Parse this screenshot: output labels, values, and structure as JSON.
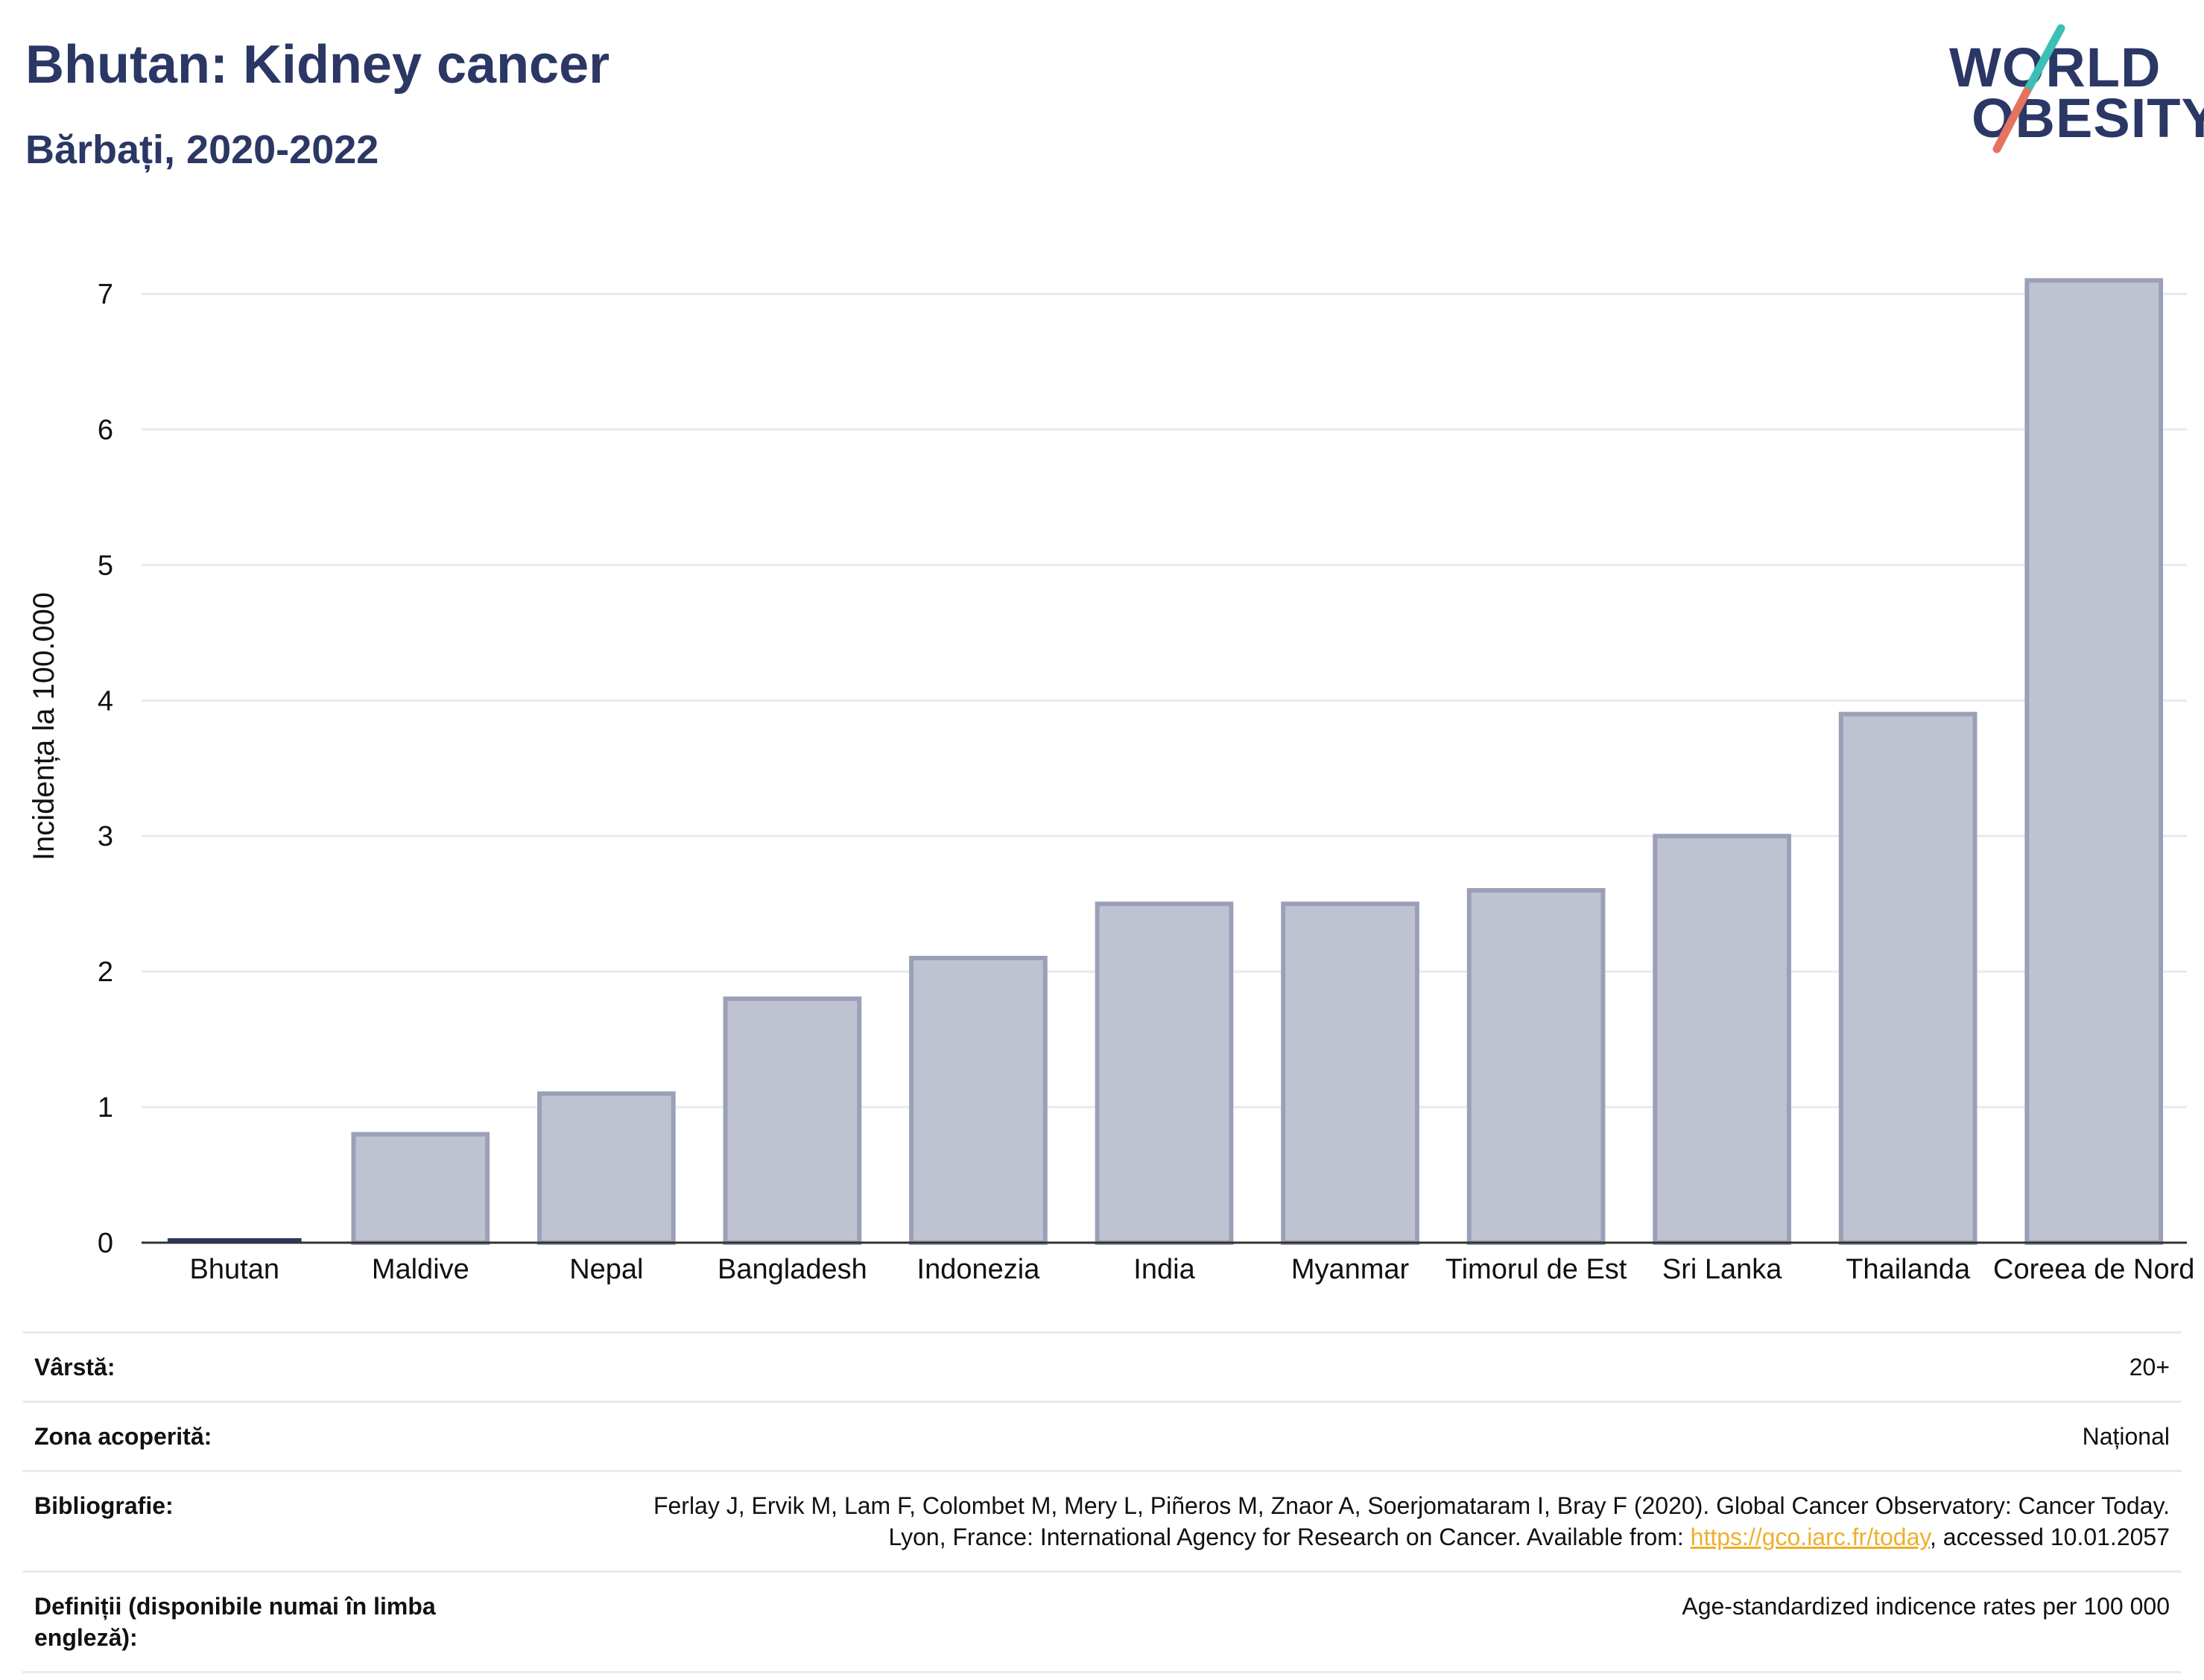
{
  "header": {
    "title": "Bhutan: Kidney cancer",
    "subtitle": "Bărbați, 2020-2022"
  },
  "logo": {
    "line1": "WORLD",
    "line2": "OBESITY",
    "colors": {
      "text": "#2b3764",
      "slash_top": "#3bbfb6",
      "slash_bottom": "#e5735f"
    }
  },
  "chart_data": {
    "type": "bar",
    "categories": [
      "Bhutan",
      "Maldive",
      "Nepal",
      "Bangladesh",
      "Indonezia",
      "India",
      "Myanmar",
      "Timorul de Est",
      "Sri Lanka",
      "Thailanda",
      "Coreea de Nord"
    ],
    "values": [
      0.02,
      0.8,
      1.1,
      1.8,
      2.1,
      2.5,
      2.5,
      2.6,
      3.0,
      3.9,
      7.1
    ],
    "highlight": "Bhutan",
    "ylabel": "Incidența la 100.000",
    "xlabel": "",
    "ylim": [
      0,
      7.3
    ],
    "yticks": [
      0,
      1,
      2,
      3,
      4,
      5,
      6,
      7
    ],
    "grid": true,
    "colors": {
      "bar_fill": "#bfc3d1",
      "bar_stroke": "#9aa0b8",
      "highlight": "#2b3764",
      "grid": "#e8eaf0",
      "axis": "#333333"
    }
  },
  "meta": {
    "rows": [
      {
        "label": "Vârstă:",
        "value": "20+"
      },
      {
        "label": "Zona acoperită:",
        "value": "Național"
      },
      {
        "label": "Bibliografie:",
        "value_before": "Ferlay J, Ervik M, Lam F, Colombet M, Mery L, Piñeros M, Znaor A, Soerjomataram I, Bray F (2020). Global Cancer Observatory: Cancer Today. Lyon, France: International Agency for Research on Cancer. Available from: ",
        "link": "https://gco.iarc.fr/today",
        "value_after": ", accessed 10.01.2057"
      },
      {
        "label": "Definiții (disponibile numai în limba engleză):",
        "value": "Age-standardized indicence rates per 100 000"
      }
    ]
  }
}
